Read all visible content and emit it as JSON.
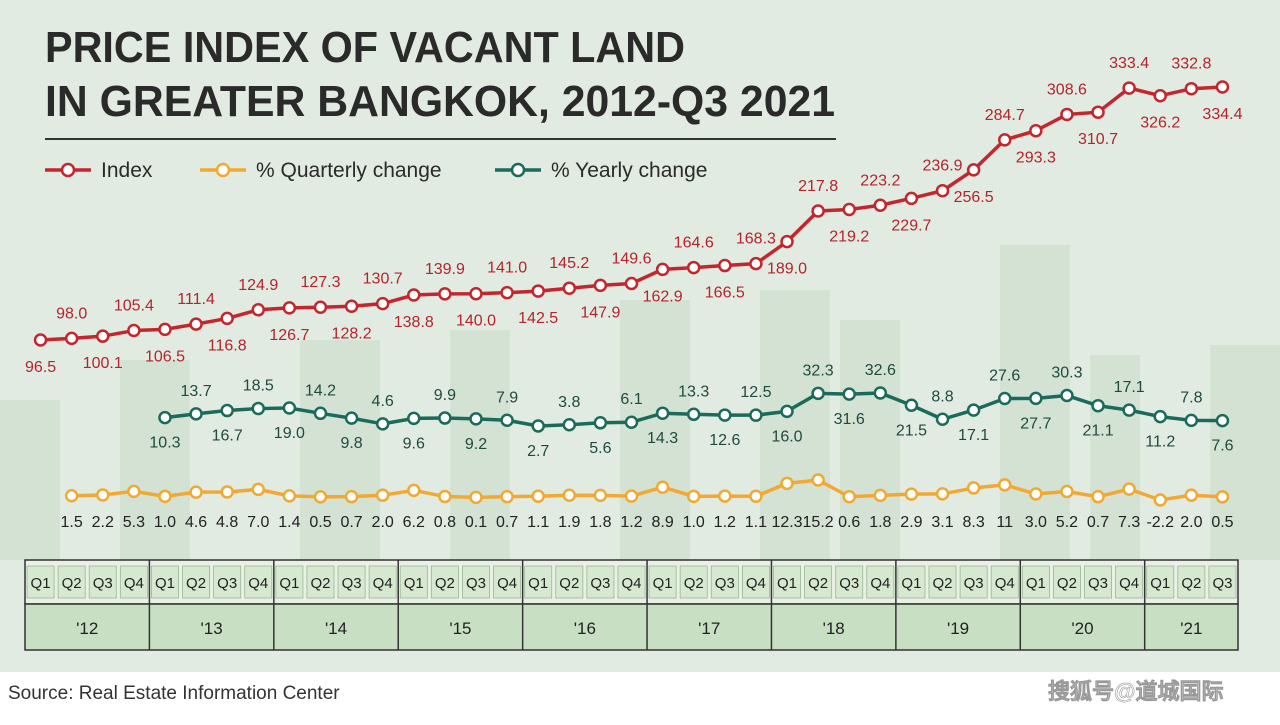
{
  "chart_data": {
    "type": "line",
    "title": [
      "PRICE INDEX OF VACANT LAND",
      "IN GREATER BANGKOK, 2012-Q3 2021"
    ],
    "categories": [
      "Q1",
      "Q2",
      "Q3",
      "Q4",
      "Q1",
      "Q2",
      "Q3",
      "Q4",
      "Q1",
      "Q2",
      "Q3",
      "Q4",
      "Q1",
      "Q2",
      "Q3",
      "Q4",
      "Q1",
      "Q2",
      "Q3",
      "Q4",
      "Q1",
      "Q2",
      "Q3",
      "Q4",
      "Q1",
      "Q2",
      "Q3",
      "Q4",
      "Q1",
      "Q2",
      "Q3",
      "Q4",
      "Q1",
      "Q2",
      "Q3",
      "Q4",
      "Q1",
      "Q2",
      "Q3"
    ],
    "years": [
      "'12",
      "'13",
      "'14",
      "'15",
      "'16",
      "'17",
      "'18",
      "'19",
      "'20",
      "'21"
    ],
    "series": [
      {
        "name": "Index",
        "color": "#c4262e",
        "values": [
          96.5,
          98.0,
          100.1,
          105.4,
          106.5,
          111.4,
          116.8,
          124.9,
          126.7,
          127.3,
          128.2,
          130.7,
          138.8,
          139.9,
          140.0,
          141.0,
          142.5,
          145.2,
          147.9,
          149.6,
          162.9,
          164.6,
          166.5,
          168.3,
          189.0,
          217.8,
          219.2,
          223.2,
          229.7,
          236.9,
          256.5,
          284.7,
          293.3,
          308.6,
          310.7,
          333.4,
          326.2,
          332.8,
          334.4
        ],
        "value_labels": [
          "96.5",
          "98.0",
          "100.1",
          "105.4",
          "106.5",
          "111.4",
          "116.8",
          "124.9",
          "126.7",
          "127.3",
          "128.2",
          "130.7",
          "138.8",
          "139.9",
          "140.0",
          "141.0",
          "142.5",
          "145.2",
          "147.9",
          "149.6",
          "162.9",
          "164.6",
          "166.5",
          "168.3",
          "189.0",
          "217.8",
          "219.2",
          "223.2",
          "229.7",
          "236.9",
          "256.5",
          "284.7",
          "293.3",
          "308.6",
          "310.7",
          "333.4",
          "326.2",
          "332.8",
          "334.4"
        ]
      },
      {
        "name": "% Quarterly change",
        "color": "#f2a933",
        "values": [
          null,
          1.5,
          2.2,
          5.3,
          1.0,
          4.6,
          4.8,
          7.0,
          1.4,
          0.5,
          0.7,
          2.0,
          6.2,
          0.8,
          0.1,
          0.7,
          1.1,
          1.9,
          1.8,
          1.2,
          8.9,
          1.0,
          1.2,
          1.1,
          12.3,
          15.2,
          0.6,
          1.8,
          2.9,
          3.1,
          8.3,
          11,
          3.0,
          5.2,
          0.7,
          7.3,
          -2.2,
          2.0,
          0.5
        ],
        "value_labels": [
          null,
          "1.5",
          "2.2",
          "5.3",
          "1.0",
          "4.6",
          "4.8",
          "7.0",
          "1.4",
          "0.5",
          "0.7",
          "2.0",
          "6.2",
          "0.8",
          "0.1",
          "0.7",
          "1.1",
          "1.9",
          "1.8",
          "1.2",
          "8.9",
          "1.0",
          "1.2",
          "1.1",
          "12.3",
          "15.2",
          "0.6",
          "1.8",
          "2.9",
          "3.1",
          "8.3",
          "11",
          "3.0",
          "5.2",
          "0.7",
          "7.3",
          "-2.2",
          "2.0",
          "0.5"
        ]
      },
      {
        "name": "% Yearly change",
        "color": "#1b6b5b",
        "values": [
          null,
          null,
          null,
          null,
          10.3,
          13.7,
          16.7,
          18.5,
          19.0,
          14.2,
          9.8,
          4.6,
          9.6,
          9.9,
          9.2,
          7.9,
          2.7,
          3.8,
          5.6,
          6.1,
          14.3,
          13.3,
          12.6,
          12.5,
          16.0,
          32.3,
          31.6,
          32.6,
          21.5,
          8.8,
          17.1,
          27.6,
          27.7,
          30.3,
          21.1,
          17.1,
          11.2,
          7.8,
          7.6
        ],
        "value_labels": [
          null,
          null,
          null,
          null,
          "10.3",
          "13.7",
          "16.7",
          "18.5",
          "19.0",
          "14.2",
          "9.8",
          "4.6",
          "9.6",
          "9.9",
          "9.2",
          "7.9",
          "2.7",
          "3.8",
          "5.6",
          "6.1",
          "14.3",
          "13.3",
          "12.6",
          "12.5",
          "16.0",
          "32.3",
          "31.6",
          "32.6",
          "21.5",
          "8.8",
          "17.1",
          "27.6",
          "27.7",
          "30.3",
          "21.1",
          "17.1",
          "11.2",
          "7.8",
          "7.6"
        ]
      }
    ]
  },
  "source": "Source: Real Estate Information Center",
  "watermark": "搜狐号@道城国际"
}
